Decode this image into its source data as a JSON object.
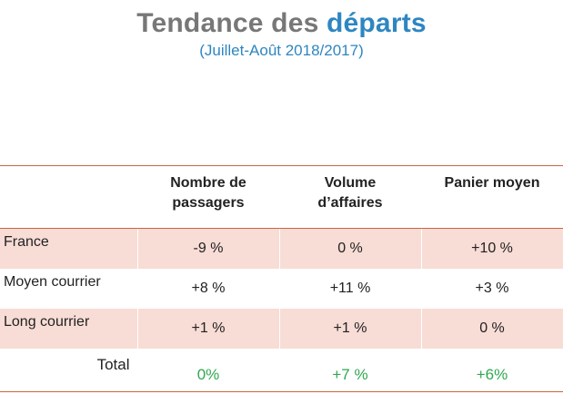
{
  "header": {
    "title_part1": "Tendance des ",
    "title_part2": "départs",
    "subtitle": "(Juillet-Août 2018/2017)"
  },
  "table": {
    "columns": [
      "",
      "Nombre de passagers",
      "Volume d’affaires",
      "Panier moyen"
    ],
    "column_lines": [
      [],
      [
        "Nombre de",
        "passagers"
      ],
      [
        "Volume",
        "d’affaires"
      ],
      [
        "Panier moyen"
      ]
    ],
    "rows": [
      {
        "label": "France",
        "values": [
          "-9 %",
          "0 %",
          "+10 %"
        ]
      },
      {
        "label": "Moyen courrier",
        "values": [
          "+8 %",
          "+11 %",
          "+3 %"
        ]
      },
      {
        "label": "Long courrier",
        "values": [
          "+1 %",
          "+1 %",
          "0 %"
        ]
      }
    ],
    "total": {
      "label": "Total",
      "values": [
        "0%",
        "+7 %",
        "+6%"
      ]
    }
  },
  "colors": {
    "title_gray": "#777777",
    "accent_blue": "#2e86c1",
    "row_shade": "#f8dcd6",
    "rule_orange": "#c9653f",
    "total_green": "#2fa84f"
  }
}
